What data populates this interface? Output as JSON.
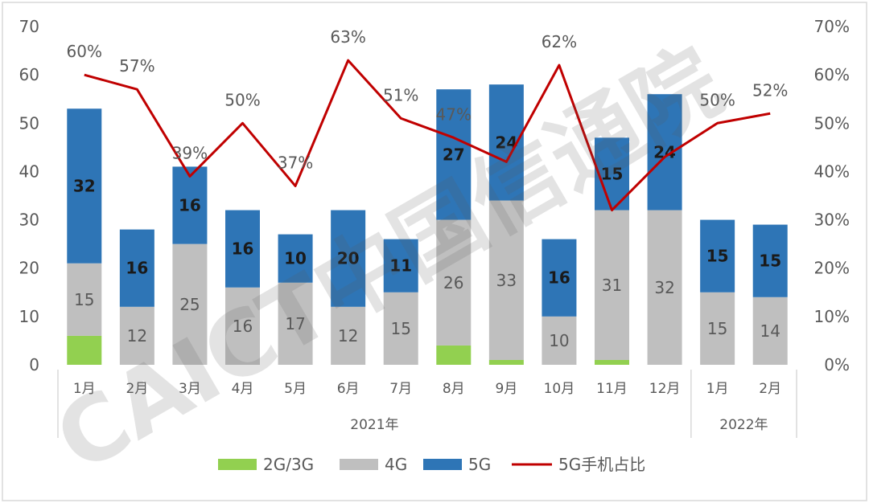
{
  "chart_data": {
    "type": "bar",
    "stacked": true,
    "categories": [
      "1月",
      "2月",
      "3月",
      "4月",
      "5月",
      "6月",
      "7月",
      "8月",
      "9月",
      "10月",
      "11月",
      "12月",
      "1月",
      "2月"
    ],
    "groups": [
      {
        "label": "2021年",
        "count": 12
      },
      {
        "label": "2022年",
        "count": 2
      }
    ],
    "series": [
      {
        "name": "2G/3G",
        "color": "#92d050",
        "values": [
          6,
          0,
          0,
          0,
          0,
          0,
          0,
          4,
          1,
          0,
          1,
          0,
          0,
          0
        ]
      },
      {
        "name": "4G",
        "color": "#bfbfbf",
        "values": [
          15,
          12,
          25,
          16,
          17,
          12,
          15,
          26,
          33,
          10,
          31,
          32,
          15,
          14
        ]
      },
      {
        "name": "5G",
        "color": "#2e75b6",
        "values": [
          32,
          16,
          16,
          16,
          10,
          20,
          11,
          27,
          24,
          16,
          15,
          24,
          15,
          15
        ]
      }
    ],
    "line_series": {
      "name": "5G手机占比",
      "color": "#c00000",
      "axis": "right",
      "values": [
        60,
        57,
        39,
        50,
        37,
        63,
        51,
        47,
        42,
        62,
        32,
        43,
        50,
        52
      ]
    },
    "bar_labels": {
      "4G": [
        "15",
        "12",
        "25",
        "16",
        "17",
        "12",
        "15",
        "26",
        "33",
        "10",
        "31",
        "32",
        "15",
        "14"
      ],
      "5G": [
        "32",
        "16",
        "16",
        "16",
        "10",
        "20",
        "11",
        "27",
        "24",
        "16",
        "15",
        "24",
        "15",
        "15"
      ]
    },
    "line_labels": [
      "60%",
      "57%",
      "39%",
      "50%",
      "37%",
      "63%",
      "51%",
      "47%",
      "",
      "62%",
      "",
      "",
      "50%",
      "52%"
    ],
    "y_left": {
      "min": 0,
      "max": 70,
      "step": 10,
      "ticks": [
        "0",
        "10",
        "20",
        "30",
        "40",
        "50",
        "60",
        "70"
      ]
    },
    "y_right": {
      "min": 0,
      "max": 70,
      "step": 10,
      "ticks": [
        "0%",
        "10%",
        "20%",
        "30%",
        "40%",
        "50%",
        "60%",
        "70%"
      ]
    },
    "legend_position": "bottom",
    "grid": false,
    "watermark": "CAICT中国信通院"
  }
}
